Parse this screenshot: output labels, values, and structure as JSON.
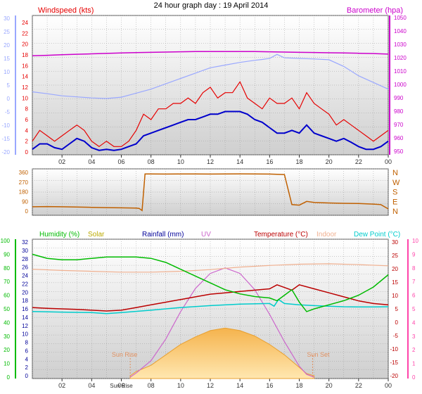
{
  "page": {
    "title": "24 hour graph day : 19 April 2014"
  },
  "colors": {
    "wind": "#e60000",
    "gust": "#e60000",
    "wind_avg": "#0000cc",
    "temp_left_axis": "#9aa8ff",
    "baro": "#cc00cc",
    "dir": "#c06000",
    "humidity": "#00bb00",
    "solar": "#bbaa00",
    "rain": "#000099",
    "uv": "#cc66cc",
    "temp": "#bb0000",
    "indoor": "#f0b090",
    "dewpoint": "#00cccc",
    "rain_axis": "#000099",
    "uv_axis": "#ff44aa",
    "sun_text": "#e09060"
  },
  "x_ticks": [
    "02",
    "04",
    "06",
    "08",
    "10",
    "12",
    "14",
    "16",
    "18",
    "20",
    "22",
    "00"
  ],
  "chart_data": [
    {
      "type": "line",
      "name": "wind-baro",
      "legend_left": "Windspeed (kts)",
      "legend_right": "Barometer (hpa)",
      "x_range": [
        0,
        24
      ],
      "y_left_ticks": [
        "30",
        "25",
        "20",
        "15",
        "10",
        "5",
        "0",
        "-5",
        "-10",
        "-15",
        "-20"
      ],
      "y_left_range": [
        -20,
        30
      ],
      "y_wind_ticks": [
        "24",
        "22",
        "20",
        "18",
        "16",
        "14",
        "12",
        "10",
        "8",
        "6",
        "4",
        "2",
        "0"
      ],
      "y_wind_range": [
        0,
        25
      ],
      "y_baro_ticks": [
        "1050",
        "1040",
        "1030",
        "1020",
        "1010",
        "1000",
        "990",
        "980",
        "970",
        "960",
        "950"
      ],
      "y_baro_range": [
        947,
        1052
      ],
      "series": [
        {
          "key": "barometer",
          "axis": "baro",
          "x": [
            0,
            1,
            2,
            3,
            4,
            5,
            6,
            7,
            8,
            9,
            10,
            11,
            12,
            13,
            14,
            15,
            16,
            17,
            18,
            19,
            20,
            21,
            22,
            23,
            24
          ],
          "y": [
            1021.5,
            1021.8,
            1022.2,
            1022.6,
            1022.9,
            1023.2,
            1023.5,
            1023.8,
            1024.0,
            1024.2,
            1024.4,
            1024.6,
            1024.6,
            1024.6,
            1024.6,
            1024.6,
            1024.4,
            1024.2,
            1024.0,
            1023.9,
            1023.7,
            1023.5,
            1023.3,
            1023.1,
            1022.7
          ]
        },
        {
          "key": "temp_top",
          "axis": "left",
          "x": [
            0,
            1,
            2,
            3,
            4,
            5,
            6,
            7,
            8,
            9,
            10,
            11,
            12,
            13,
            14,
            15,
            15.5,
            16,
            16.5,
            17,
            18,
            19,
            20,
            21,
            22,
            23,
            24
          ],
          "y": [
            2.5,
            1.8,
            1.0,
            0.6,
            0.2,
            0.0,
            0.5,
            2.0,
            3.5,
            5.5,
            7.5,
            9.5,
            11.5,
            12.5,
            13.5,
            14.3,
            14.6,
            15.0,
            16.5,
            15.2,
            15.0,
            14.8,
            14.5,
            12.0,
            8.5,
            6.0,
            3.5
          ]
        },
        {
          "key": "gust",
          "axis": "wind",
          "x": [
            0,
            0.5,
            1,
            1.5,
            2,
            2.5,
            3,
            3.5,
            4,
            4.5,
            5,
            5.5,
            6,
            6.5,
            7,
            7.5,
            8,
            8.5,
            9,
            9.5,
            10,
            10.5,
            11,
            11.5,
            12,
            12.5,
            13,
            13.5,
            14,
            14.5,
            15,
            15.5,
            16,
            16.5,
            17,
            17.5,
            18,
            18.5,
            19,
            19.5,
            20,
            20.5,
            21,
            21.5,
            22,
            22.5,
            23,
            23.5,
            24
          ],
          "y": [
            2,
            4,
            3,
            2,
            3,
            4,
            5,
            4,
            2,
            1,
            2,
            1,
            1,
            2,
            4,
            7,
            6,
            8,
            8,
            9,
            9,
            10,
            9,
            11,
            12,
            10,
            11,
            11,
            13,
            10,
            9,
            8,
            10,
            9,
            9,
            10,
            8,
            11,
            9,
            8,
            7,
            5,
            6,
            5,
            4,
            3,
            2,
            3,
            4
          ]
        },
        {
          "key": "avg_wind",
          "axis": "wind",
          "x": [
            0,
            0.5,
            1,
            1.5,
            2,
            2.5,
            3,
            3.5,
            4,
            4.5,
            5,
            5.5,
            6,
            6.5,
            7,
            7.5,
            8,
            8.5,
            9,
            9.5,
            10,
            10.5,
            11,
            11.5,
            12,
            12.5,
            13,
            13.5,
            14,
            14.5,
            15,
            15.5,
            16,
            16.5,
            17,
            17.5,
            18,
            18.5,
            19,
            19.5,
            20,
            20.5,
            21,
            21.5,
            22,
            22.5,
            23,
            23.5,
            24
          ],
          "y": [
            0.5,
            1.5,
            1.5,
            0.8,
            0.5,
            1.5,
            2.5,
            2,
            0.8,
            0.3,
            0.5,
            0.3,
            0.5,
            1,
            1.5,
            3,
            3.5,
            4,
            4.5,
            5,
            5.5,
            6,
            6,
            6.5,
            7,
            7,
            7.5,
            7.5,
            7.5,
            7,
            6,
            5.5,
            4.5,
            3.5,
            3.5,
            4,
            3.5,
            5,
            3.5,
            3,
            2.5,
            2,
            2.5,
            1.8,
            1,
            0.5,
            0.5,
            1,
            2
          ]
        }
      ]
    },
    {
      "type": "line",
      "name": "wind-direction",
      "x_range": [
        0,
        24
      ],
      "y_left_ticks": [
        "360",
        "270",
        "180",
        "90",
        "0"
      ],
      "y_range": [
        0,
        360
      ],
      "y_right_labels": [
        "N",
        "W",
        "S",
        "E",
        "N"
      ],
      "series": [
        {
          "key": "direction",
          "x": [
            0,
            1,
            2,
            3,
            4,
            5,
            6,
            7,
            7.2,
            7.4,
            7.6,
            8,
            9,
            10,
            11,
            12,
            13,
            14,
            15,
            16,
            16.5,
            17,
            17.5,
            18,
            18.5,
            19,
            20,
            21,
            22,
            23,
            23.5,
            24
          ],
          "y": [
            40,
            42,
            40,
            38,
            35,
            32,
            30,
            28,
            25,
            5,
            345,
            345,
            344,
            345,
            345,
            344,
            345,
            346,
            345,
            344,
            342,
            340,
            60,
            55,
            90,
            80,
            75,
            72,
            70,
            65,
            60,
            20
          ]
        }
      ]
    },
    {
      "type": "area",
      "name": "climate",
      "legends": [
        "Humidity  (%)",
        "Solar",
        "Rainfall (mm)",
        "UV",
        "Temperature (°C)",
        "Indoor",
        "Dew Point (°C)"
      ],
      "x_range": [
        0,
        24
      ],
      "y_hum_ticks": [
        "100",
        "90",
        "80",
        "70",
        "60",
        "50",
        "40",
        "30",
        "20",
        "10",
        "0"
      ],
      "y_hum_range": [
        0,
        100
      ],
      "y_temp_ticks": [
        "32",
        "30",
        "28",
        "26",
        "24",
        "22",
        "20",
        "18",
        "16",
        "14",
        "12",
        "10",
        "8",
        "6",
        "4",
        "2",
        "0"
      ],
      "y_temp_range": [
        0,
        33
      ],
      "y_temp_right_ticks": [
        "30",
        "25",
        "20",
        "15",
        "10",
        "5",
        "0",
        "-5",
        "-10",
        "-15",
        "-20"
      ],
      "y_temp_right_range": [
        -20,
        30
      ],
      "y_uv_ticks": [
        "10",
        "9",
        "8",
        "7",
        "6",
        "5",
        "4",
        "3",
        "2",
        "1",
        "0"
      ],
      "y_uv_range": [
        0,
        10
      ],
      "annotations": [
        "Sun Rise",
        "Sun Set"
      ],
      "x_label_extra": "Sun Rise",
      "series": [
        {
          "key": "humidity",
          "axis": "hum",
          "x": [
            0,
            1,
            2,
            3,
            4,
            5,
            6,
            7,
            8,
            9,
            10,
            11,
            12,
            13,
            14,
            15,
            16,
            16.5,
            17,
            17.5,
            18,
            18.5,
            19,
            20,
            21,
            22,
            23,
            24
          ],
          "y": [
            90,
            87,
            86,
            86,
            87,
            88,
            88,
            88,
            87,
            84,
            79,
            74,
            69,
            64,
            61,
            59,
            58,
            56,
            60,
            64,
            55,
            48,
            50,
            53,
            56,
            60,
            66,
            75
          ]
        },
        {
          "key": "indoor",
          "axis": "temp",
          "x": [
            0,
            2,
            4,
            6,
            8,
            10,
            12,
            14,
            16,
            18,
            20,
            22,
            24
          ],
          "y": [
            25.5,
            25.2,
            25.0,
            24.8,
            24.8,
            25.0,
            25.4,
            26.0,
            26.4,
            26.7,
            26.8,
            26.6,
            26.3
          ]
        },
        {
          "key": "temperature",
          "axis": "tempR",
          "x": [
            0,
            1,
            2,
            3,
            4,
            5,
            6,
            7,
            8,
            9,
            10,
            11,
            12,
            13,
            14,
            15,
            16,
            16.5,
            17,
            17.5,
            18,
            19,
            20,
            21,
            22,
            23,
            24
          ],
          "y": [
            5.5,
            5.2,
            5.0,
            4.8,
            4.5,
            4.2,
            4.5,
            5.5,
            6.5,
            7.5,
            8.5,
            9.5,
            10.5,
            11.0,
            11.5,
            12.0,
            12.5,
            14.0,
            13.0,
            12.0,
            14.0,
            12.5,
            11.0,
            9.5,
            8.0,
            7.0,
            6.5
          ]
        },
        {
          "key": "dewpoint",
          "axis": "tempR",
          "x": [
            0,
            2,
            4,
            5,
            6,
            8,
            10,
            12,
            14,
            16,
            16.3,
            16.6,
            17,
            18,
            19,
            20,
            21,
            22,
            23,
            24
          ],
          "y": [
            4.0,
            3.8,
            3.6,
            3.2,
            3.6,
            4.5,
            5.5,
            6.2,
            6.8,
            7.0,
            6.0,
            8.5,
            7.0,
            6.5,
            6.2,
            6.0,
            5.8,
            5.7,
            5.7,
            5.8
          ]
        },
        {
          "key": "solar",
          "axis": "solar",
          "x": [
            6.6,
            7,
            8,
            9,
            10,
            11,
            12,
            13,
            14,
            15,
            16,
            17,
            18,
            18.5,
            19
          ],
          "y": [
            0,
            1,
            2.5,
            5,
            7.5,
            9.3,
            10.8,
            11.4,
            10.8,
            9.5,
            7.5,
            5,
            2,
            0.5,
            0
          ]
        },
        {
          "key": "uv",
          "axis": "uv",
          "x": [
            6.6,
            7,
            8,
            9,
            10,
            11,
            12,
            13,
            14,
            15,
            16,
            17,
            18,
            18.5,
            19
          ],
          "y": [
            0,
            0.3,
            1.2,
            2.8,
            4.8,
            6.5,
            7.6,
            8.0,
            7.6,
            6.4,
            4.6,
            2.6,
            0.8,
            0.2,
            0
          ]
        }
      ]
    }
  ]
}
